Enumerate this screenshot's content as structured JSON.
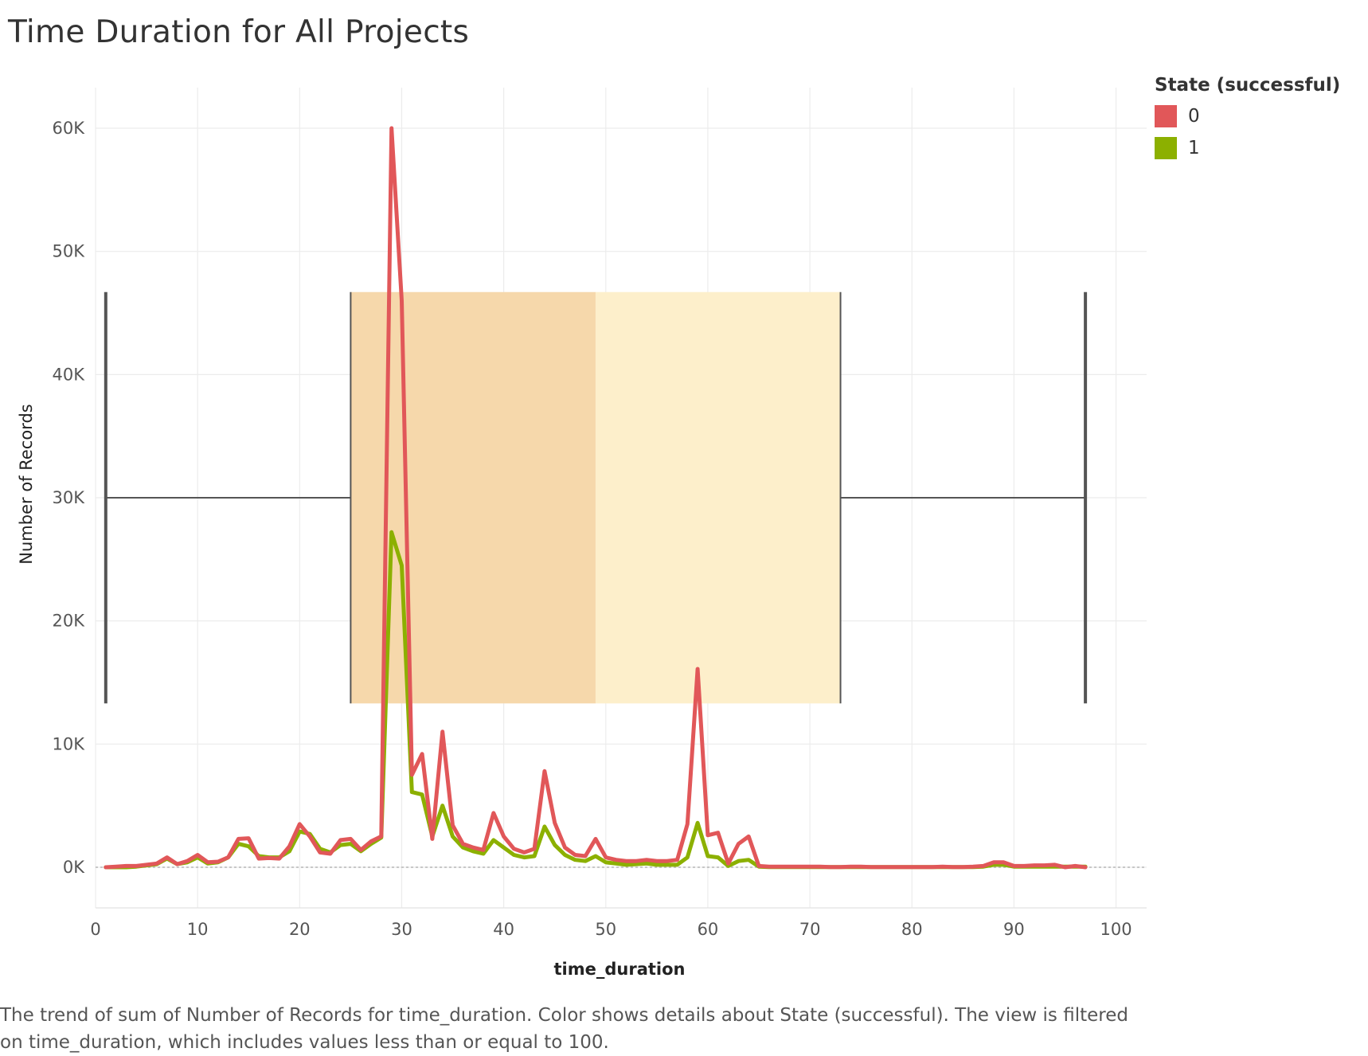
{
  "title": "Time Duration for All Projects",
  "caption": "The trend of sum of Number of Records for time_duration.  Color shows details about State (successful). The view is filtered on time_duration, which includes values less than or equal to 100.",
  "legend": {
    "title": "State (successful)",
    "items": [
      {
        "label": "0",
        "color": "#e15759"
      },
      {
        "label": "1",
        "color": "#8cb000"
      }
    ]
  },
  "chart_data": {
    "type": "line",
    "xlabel": "time_duration",
    "ylabel": "Number of Records",
    "xlim": [
      0,
      103
    ],
    "ylim": [
      -3300,
      63300
    ],
    "x_ticks": [
      0,
      10,
      20,
      30,
      40,
      50,
      60,
      70,
      80,
      90,
      100
    ],
    "y_ticks": [
      0,
      10000,
      20000,
      30000,
      40000,
      50000,
      60000
    ],
    "y_tick_labels": [
      "0K",
      "10K",
      "20K",
      "30K",
      "40K",
      "50K",
      "60K"
    ],
    "grid": true,
    "legend_position": "top-right",
    "box_plot": {
      "whisker_low": 1,
      "q1": 25,
      "median": 49,
      "q3": 73,
      "whisker_high": 97,
      "y_top": 46700,
      "y_bottom": 13300,
      "y_center": 30000,
      "lower_color": "#f6d8ab",
      "upper_color": "#fdefcb"
    },
    "series": [
      {
        "name": "0",
        "color": "#e15759",
        "x": [
          1,
          2,
          3,
          4,
          5,
          6,
          7,
          8,
          9,
          10,
          11,
          12,
          13,
          14,
          15,
          16,
          17,
          18,
          19,
          20,
          21,
          22,
          23,
          24,
          25,
          26,
          27,
          28,
          29,
          30,
          31,
          32,
          33,
          34,
          35,
          36,
          37,
          38,
          39,
          40,
          41,
          42,
          43,
          44,
          45,
          46,
          47,
          48,
          49,
          50,
          51,
          52,
          53,
          54,
          55,
          56,
          57,
          58,
          59,
          60,
          61,
          62,
          63,
          64,
          65,
          66,
          67,
          68,
          69,
          70,
          71,
          72,
          73,
          74,
          75,
          76,
          77,
          78,
          79,
          80,
          81,
          82,
          83,
          84,
          85,
          86,
          87,
          88,
          89,
          90,
          91,
          92,
          93,
          94,
          95,
          96,
          97
        ],
        "values": [
          0,
          50,
          100,
          100,
          200,
          300,
          800,
          250,
          500,
          1000,
          400,
          450,
          800,
          2300,
          2350,
          700,
          750,
          700,
          1700,
          3500,
          2500,
          1200,
          1100,
          2200,
          2300,
          1400,
          2100,
          2500,
          60000,
          46000,
          7500,
          9200,
          2300,
          11000,
          3400,
          1900,
          1600,
          1400,
          4400,
          2500,
          1500,
          1200,
          1500,
          7800,
          3600,
          1600,
          1000,
          900,
          2300,
          800,
          600,
          500,
          500,
          600,
          500,
          500,
          600,
          3500,
          16100,
          2600,
          2800,
          300,
          1900,
          2500,
          100,
          50,
          50,
          50,
          50,
          50,
          50,
          20,
          20,
          50,
          50,
          20,
          20,
          20,
          20,
          20,
          20,
          20,
          50,
          20,
          20,
          50,
          100,
          400,
          400,
          100,
          100,
          150,
          150,
          200,
          0,
          100,
          0
        ]
      },
      {
        "name": "1",
        "color": "#8cb000",
        "x": [
          1,
          2,
          3,
          4,
          5,
          6,
          7,
          8,
          9,
          10,
          11,
          12,
          13,
          14,
          15,
          16,
          17,
          18,
          19,
          20,
          21,
          22,
          23,
          24,
          25,
          26,
          27,
          28,
          29,
          30,
          31,
          32,
          33,
          34,
          35,
          36,
          37,
          38,
          39,
          40,
          41,
          42,
          43,
          44,
          45,
          46,
          47,
          48,
          49,
          50,
          51,
          52,
          53,
          54,
          55,
          56,
          57,
          58,
          59,
          60,
          61,
          62,
          63,
          64,
          65,
          66,
          67,
          68,
          69,
          70,
          71,
          72,
          73,
          74,
          75,
          76,
          77,
          78,
          79,
          80,
          81,
          82,
          83,
          84,
          85,
          86,
          87,
          88,
          89,
          90,
          91,
          92,
          93,
          94,
          95,
          96,
          97
        ],
        "values": [
          0,
          0,
          0,
          50,
          150,
          250,
          700,
          250,
          400,
          800,
          300,
          400,
          800,
          1900,
          1700,
          900,
          800,
          800,
          1300,
          2900,
          2700,
          1500,
          1200,
          1800,
          1900,
          1300,
          1900,
          2400,
          27200,
          24500,
          6100,
          5900,
          2500,
          5000,
          2500,
          1600,
          1300,
          1100,
          2200,
          1600,
          1000,
          800,
          900,
          3300,
          1800,
          1000,
          600,
          500,
          900,
          400,
          300,
          200,
          250,
          300,
          200,
          200,
          200,
          800,
          3600,
          900,
          800,
          100,
          500,
          600,
          50,
          20,
          20,
          20,
          20,
          20,
          20,
          20,
          20,
          20,
          20,
          20,
          20,
          20,
          20,
          20,
          20,
          20,
          20,
          20,
          20,
          20,
          50,
          200,
          200,
          50,
          50,
          50,
          50,
          50,
          50,
          50,
          50
        ]
      }
    ]
  }
}
